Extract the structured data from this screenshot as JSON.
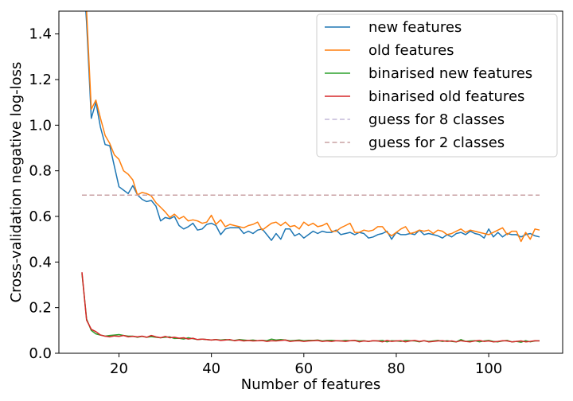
{
  "chart_data": {
    "type": "line",
    "title": "",
    "xlabel": "Number of features",
    "ylabel": "Cross-validation negative log-loss",
    "xlim": [
      7,
      116
    ],
    "ylim": [
      0.0,
      1.5
    ],
    "xticks": [
      20,
      40,
      60,
      80,
      100
    ],
    "yticks": [
      0.0,
      0.2,
      0.4,
      0.6,
      0.8,
      1.0,
      1.2,
      1.4
    ],
    "grid": false,
    "legend_position": "upper-right",
    "x": [
      12,
      13,
      14,
      15,
      16,
      17,
      18,
      19,
      20,
      21,
      22,
      23,
      24,
      25,
      26,
      27,
      28,
      29,
      30,
      31,
      32,
      33,
      34,
      35,
      36,
      37,
      38,
      39,
      40,
      41,
      42,
      43,
      44,
      45,
      46,
      47,
      48,
      49,
      50,
      51,
      52,
      53,
      54,
      55,
      56,
      57,
      58,
      59,
      60,
      61,
      62,
      63,
      64,
      65,
      66,
      67,
      68,
      69,
      70,
      71,
      72,
      73,
      74,
      75,
      76,
      77,
      78,
      79,
      80,
      81,
      82,
      83,
      84,
      85,
      86,
      87,
      88,
      89,
      90,
      91,
      92,
      93,
      94,
      95,
      96,
      97,
      98,
      99,
      100,
      101,
      102,
      103,
      104,
      105,
      106,
      107,
      108,
      109,
      110,
      111
    ],
    "series": [
      {
        "name": "new features",
        "color": "#1f77b4",
        "style": "solid",
        "values": [
          1.75,
          1.45,
          1.03,
          1.1,
          0.99,
          0.915,
          0.91,
          0.82,
          0.73,
          0.715,
          0.7,
          0.735,
          0.695,
          0.675,
          0.665,
          0.67,
          0.645,
          0.58,
          0.595,
          0.59,
          0.6,
          0.56,
          0.545,
          0.555,
          0.57,
          0.54,
          0.545,
          0.565,
          0.57,
          0.56,
          0.52,
          0.545,
          0.55,
          0.55,
          0.55,
          0.525,
          0.535,
          0.525,
          0.54,
          0.545,
          0.52,
          0.495,
          0.525,
          0.5,
          0.545,
          0.545,
          0.515,
          0.525,
          0.505,
          0.52,
          0.535,
          0.525,
          0.535,
          0.53,
          0.53,
          0.54,
          0.52,
          0.525,
          0.53,
          0.52,
          0.53,
          0.525,
          0.505,
          0.51,
          0.52,
          0.525,
          0.535,
          0.5,
          0.53,
          0.52,
          0.52,
          0.525,
          0.52,
          0.54,
          0.52,
          0.525,
          0.52,
          0.515,
          0.505,
          0.52,
          0.51,
          0.525,
          0.53,
          0.52,
          0.535,
          0.525,
          0.52,
          0.505,
          0.545,
          0.51,
          0.53,
          0.51,
          0.525,
          0.52,
          0.52,
          0.51,
          0.52,
          0.525,
          0.515,
          0.51
        ]
      },
      {
        "name": "old features",
        "color": "#ff7f0e",
        "style": "solid",
        "values": [
          1.75,
          1.5,
          1.07,
          1.11,
          1.03,
          0.955,
          0.92,
          0.87,
          0.85,
          0.8,
          0.785,
          0.76,
          0.695,
          0.705,
          0.7,
          0.69,
          0.66,
          0.64,
          0.62,
          0.595,
          0.61,
          0.59,
          0.6,
          0.58,
          0.585,
          0.58,
          0.57,
          0.575,
          0.605,
          0.565,
          0.585,
          0.555,
          0.565,
          0.56,
          0.555,
          0.55,
          0.56,
          0.565,
          0.575,
          0.54,
          0.555,
          0.57,
          0.575,
          0.56,
          0.575,
          0.555,
          0.56,
          0.545,
          0.575,
          0.56,
          0.57,
          0.555,
          0.56,
          0.57,
          0.535,
          0.535,
          0.55,
          0.56,
          0.57,
          0.53,
          0.53,
          0.54,
          0.535,
          0.54,
          0.555,
          0.555,
          0.53,
          0.515,
          0.53,
          0.545,
          0.555,
          0.525,
          0.53,
          0.54,
          0.535,
          0.54,
          0.525,
          0.54,
          0.535,
          0.52,
          0.525,
          0.535,
          0.545,
          0.53,
          0.54,
          0.535,
          0.53,
          0.525,
          0.52,
          0.53,
          0.54,
          0.55,
          0.52,
          0.535,
          0.535,
          0.49,
          0.53,
          0.5,
          0.545,
          0.54
        ]
      },
      {
        "name": "binarised new features",
        "color": "#2ca02c",
        "style": "solid",
        "values": [
          0.35,
          0.15,
          0.1,
          0.085,
          0.08,
          0.075,
          0.078,
          0.08,
          0.082,
          0.078,
          0.075,
          0.075,
          0.07,
          0.074,
          0.07,
          0.073,
          0.07,
          0.068,
          0.07,
          0.072,
          0.065,
          0.066,
          0.062,
          0.068,
          0.064,
          0.06,
          0.062,
          0.06,
          0.058,
          0.06,
          0.058,
          0.06,
          0.058,
          0.056,
          0.06,
          0.058,
          0.056,
          0.058,
          0.055,
          0.057,
          0.055,
          0.062,
          0.058,
          0.06,
          0.058,
          0.055,
          0.056,
          0.058,
          0.055,
          0.057,
          0.056,
          0.058,
          0.054,
          0.056,
          0.057,
          0.055,
          0.054,
          0.056,
          0.055,
          0.056,
          0.054,
          0.055,
          0.052,
          0.055,
          0.054,
          0.056,
          0.05,
          0.055,
          0.054,
          0.052,
          0.056,
          0.055,
          0.054,
          0.05,
          0.055,
          0.052,
          0.054,
          0.056,
          0.052,
          0.055,
          0.052,
          0.05,
          0.06,
          0.052,
          0.054,
          0.055,
          0.05,
          0.054,
          0.056,
          0.052,
          0.05,
          0.054,
          0.056,
          0.05,
          0.052,
          0.048,
          0.055,
          0.05,
          0.054,
          0.055
        ]
      },
      {
        "name": "binarised old features",
        "color": "#d62728",
        "style": "solid",
        "values": [
          0.355,
          0.145,
          0.105,
          0.095,
          0.08,
          0.075,
          0.072,
          0.076,
          0.074,
          0.078,
          0.072,
          0.074,
          0.072,
          0.075,
          0.07,
          0.078,
          0.072,
          0.068,
          0.074,
          0.068,
          0.07,
          0.066,
          0.068,
          0.062,
          0.066,
          0.06,
          0.062,
          0.06,
          0.058,
          0.06,
          0.056,
          0.058,
          0.06,
          0.055,
          0.058,
          0.054,
          0.056,
          0.054,
          0.055,
          0.056,
          0.052,
          0.055,
          0.054,
          0.056,
          0.058,
          0.052,
          0.054,
          0.055,
          0.052,
          0.054,
          0.055,
          0.056,
          0.052,
          0.054,
          0.052,
          0.055,
          0.054,
          0.052,
          0.055,
          0.056,
          0.05,
          0.054,
          0.052,
          0.055,
          0.054,
          0.05,
          0.056,
          0.052,
          0.054,
          0.055,
          0.05,
          0.054,
          0.056,
          0.052,
          0.055,
          0.05,
          0.052,
          0.054,
          0.055,
          0.052,
          0.054,
          0.05,
          0.055,
          0.052,
          0.05,
          0.054,
          0.056,
          0.052,
          0.054,
          0.05,
          0.052,
          0.055,
          0.054,
          0.05,
          0.052,
          0.054,
          0.05,
          0.052,
          0.055,
          0.054
        ]
      },
      {
        "name": "guess for 8 classes",
        "color": "#c4b8d8",
        "style": "dashed",
        "constant": 0.693
      },
      {
        "name": "guess for 2 classes",
        "color": "#c9a2a4",
        "style": "dashed",
        "constant": 0.693
      }
    ]
  }
}
